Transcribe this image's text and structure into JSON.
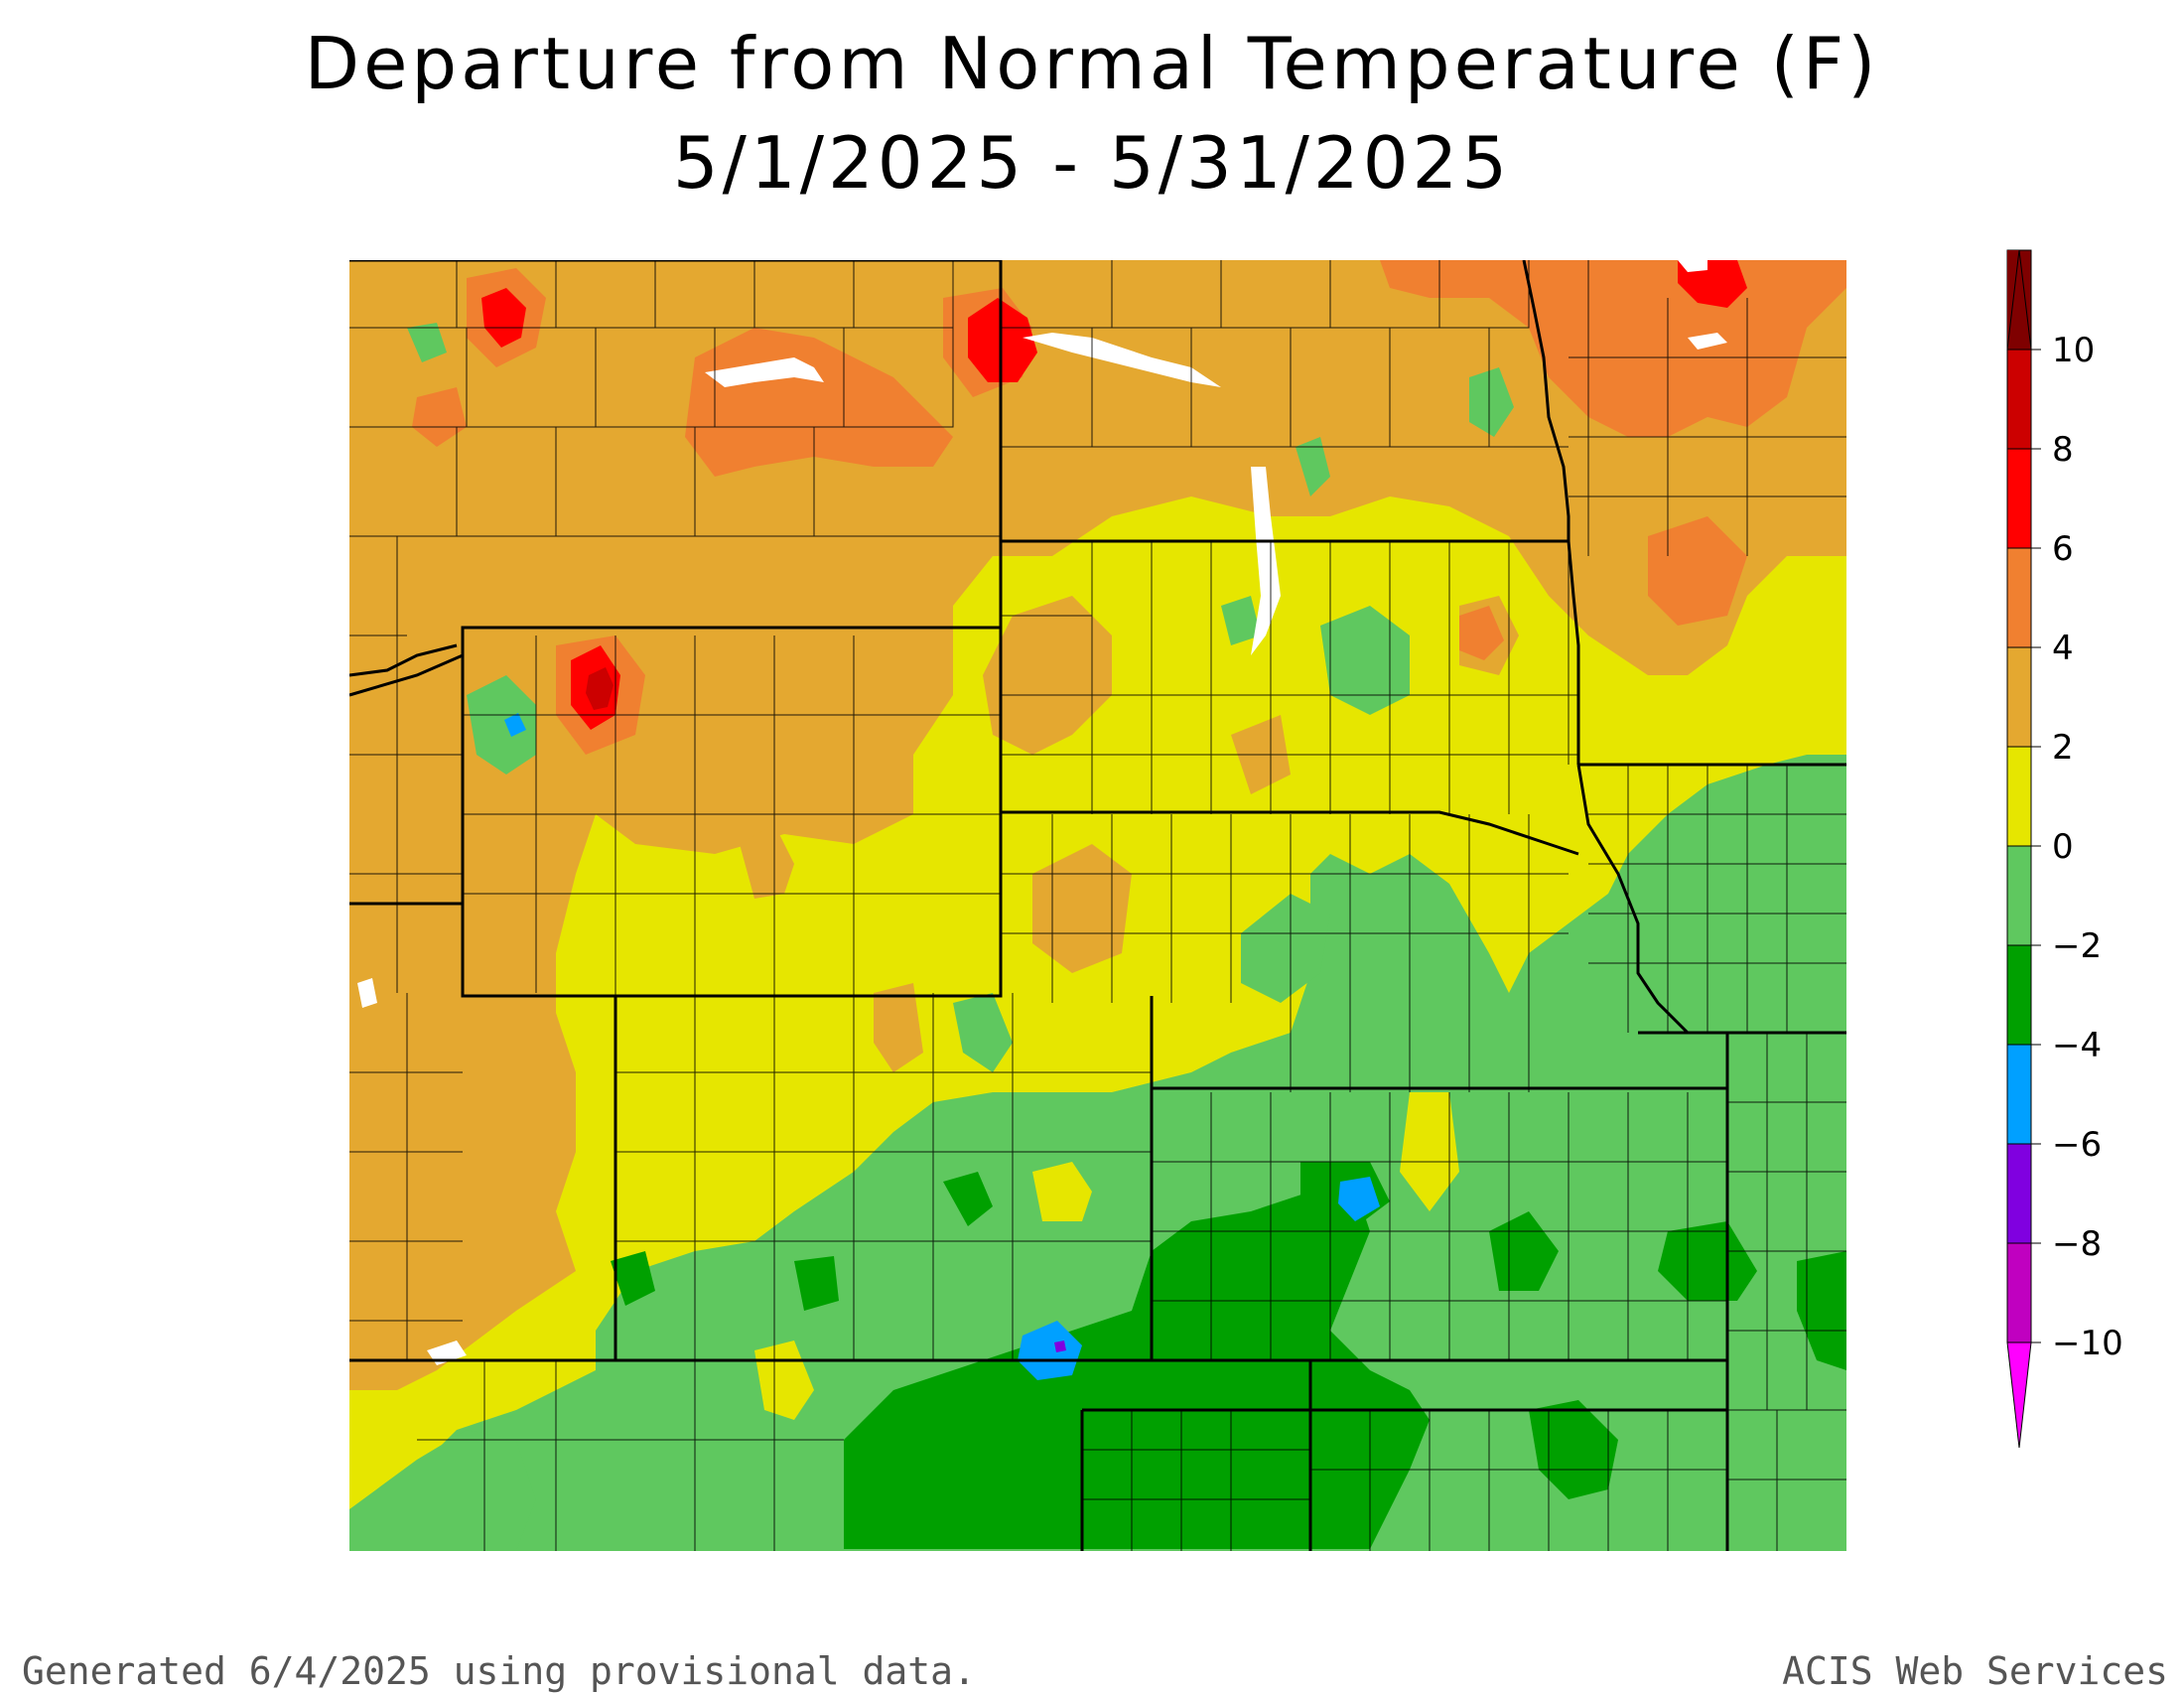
{
  "title": {
    "line1": "Departure from Normal Temperature (F)",
    "line2": "5/1/2025 - 5/31/2025"
  },
  "legend": {
    "unit": "F",
    "ticks": [
      "10",
      "8",
      "6",
      "4",
      "2",
      "0",
      "−2",
      "−4",
      "−6",
      "−8",
      "−10"
    ],
    "bins": [
      {
        "range": "above 10",
        "color": "#7f0000"
      },
      {
        "range": "8 to 10",
        "color": "#cc0000"
      },
      {
        "range": "6 to 8",
        "color": "#ff0000"
      },
      {
        "range": "4 to 6",
        "color": "#f08030"
      },
      {
        "range": "2 to 4",
        "color": "#e4a830"
      },
      {
        "range": "0 to 2",
        "color": "#e6e600"
      },
      {
        "range": "-2 to 0",
        "color": "#5fc85f"
      },
      {
        "range": "-4 to -2",
        "color": "#00a000"
      },
      {
        "range": "-6 to -4",
        "color": "#00a0ff"
      },
      {
        "range": "-8 to -6",
        "color": "#8000e0"
      },
      {
        "range": "-10 to -8",
        "color": "#c000c0"
      },
      {
        "range": "below -10",
        "color": "#ff00ff"
      }
    ]
  },
  "footer": {
    "generated": "Generated 6/4/2025 using provisional data.",
    "source": "ACIS Web Services"
  }
}
